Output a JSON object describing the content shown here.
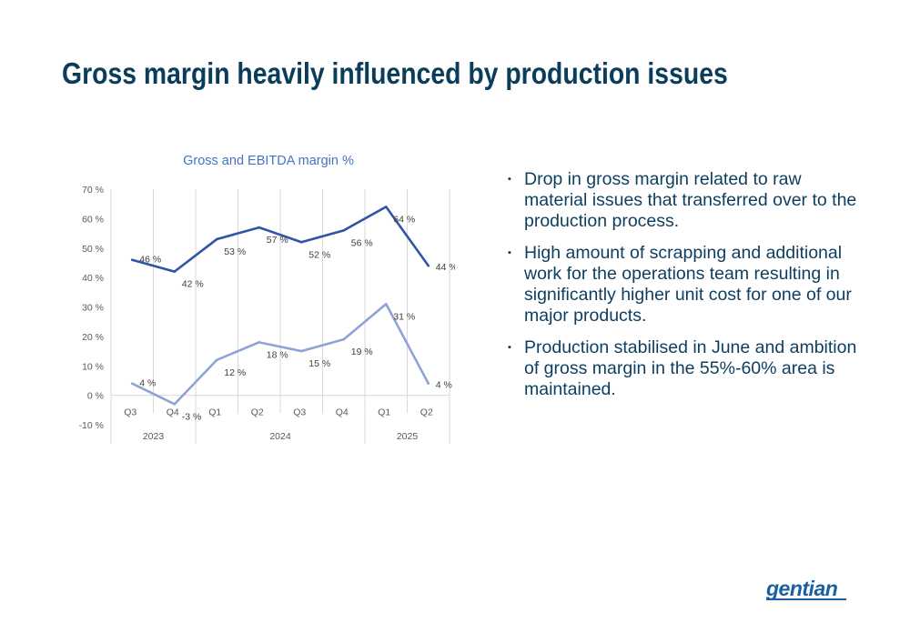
{
  "slide": {
    "title": "Gross margin heavily influenced by production issues",
    "bullets": [
      "Drop in gross margin related to raw material issues that transferred over to the production process.",
      "High amount of scrapping and additional work for the operations team resulting in significantly higher unit cost for one of our major products.",
      "Production stabilised in June and ambition of gross margin in the 55%-60% area is maintained."
    ],
    "bullet_marker": "▪",
    "logo": "gentian"
  },
  "chart_data": {
    "type": "line",
    "title": "Gross and EBITDA margin %",
    "categories": [
      "Q3",
      "Q4",
      "Q1",
      "Q2",
      "Q3",
      "Q4",
      "Q1",
      "Q2"
    ],
    "year_groups": [
      {
        "label": "2023",
        "span": 2
      },
      {
        "label": "2024",
        "span": 4
      },
      {
        "label": "2025",
        "span": 2
      }
    ],
    "series": [
      {
        "values": [
          46,
          42,
          53,
          57,
          52,
          56,
          64,
          44
        ],
        "color": "#2f55a4",
        "labels": [
          "46 %",
          "42 %",
          "53 %",
          "57 %",
          "52 %",
          "56 %",
          "64 %",
          "44 %"
        ]
      },
      {
        "values": [
          4,
          -3,
          12,
          18,
          15,
          19,
          31,
          4
        ],
        "color": "#8fa3d6",
        "labels": [
          "4 %",
          "-3 %",
          "12 %",
          "18 %",
          "15 %",
          "19 %",
          "31 %",
          "4 %"
        ]
      }
    ],
    "ylim": [
      -10,
      70
    ],
    "yticks": [
      -10,
      0,
      10,
      20,
      30,
      40,
      50,
      60,
      70
    ],
    "ytick_labels": [
      "-10 %",
      "0 %",
      "10 %",
      "20 %",
      "30 %",
      "40 %",
      "50 %",
      "60 %",
      "70 %"
    ],
    "grid": "vertical",
    "legend": "none",
    "colors": {
      "title": "#4472c4",
      "axis_text": "#595959",
      "grid": "#d9d9d9"
    }
  }
}
